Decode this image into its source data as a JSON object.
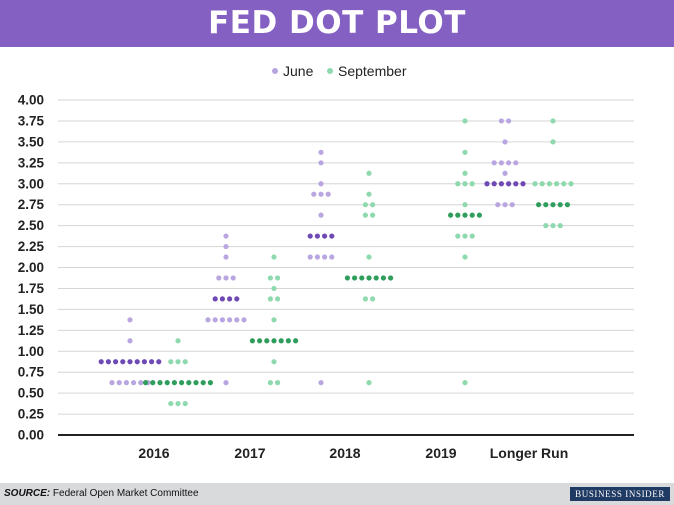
{
  "header": {
    "title": "FED DOT PLOT"
  },
  "footer": {
    "source_label": "SOURCE:",
    "source_text": "Federal Open Market Committee",
    "brand": "BUSINESS INSIDER"
  },
  "colors": {
    "banner": "#8460c2",
    "june": "#b9a6e0",
    "june_median": "#6f4ab5",
    "september": "#8ed9ad",
    "september_median": "#2f9e5c",
    "grid": "#d6d6d6",
    "axis": "#222222"
  },
  "chart_data": {
    "type": "scatter",
    "title": "FED DOT PLOT",
    "legend_position": "top",
    "grid": true,
    "categories": [
      "2016",
      "2017",
      "2018",
      "2019",
      "Longer Run"
    ],
    "yticks": [
      "0.00",
      "0.25",
      "0.50",
      "0.75",
      "1.00",
      "1.25",
      "1.50",
      "1.75",
      "2.00",
      "2.25",
      "2.50",
      "2.75",
      "3.00",
      "3.25",
      "3.50",
      "3.75",
      "4.00"
    ],
    "ylim": [
      0,
      4
    ],
    "series": [
      {
        "name": "June",
        "dots": [
          {
            "category": "2016",
            "points": [
              [
                1.375,
                1
              ],
              [
                1.125,
                1
              ],
              [
                0.875,
                9
              ],
              [
                0.625,
                6
              ]
            ],
            "median": 0.875
          },
          {
            "category": "2017",
            "points": [
              [
                2.375,
                1
              ],
              [
                2.25,
                1
              ],
              [
                2.125,
                1
              ],
              [
                1.875,
                3
              ],
              [
                1.625,
                4
              ],
              [
                1.375,
                6
              ],
              [
                0.625,
                1
              ]
            ],
            "median": 1.625
          },
          {
            "category": "2018",
            "points": [
              [
                3.375,
                1
              ],
              [
                3.25,
                1
              ],
              [
                3.0,
                1
              ],
              [
                2.875,
                3
              ],
              [
                2.625,
                1
              ],
              [
                2.375,
                4
              ],
              [
                2.125,
                4
              ],
              [
                0.625,
                1
              ]
            ],
            "median": 2.375
          },
          {
            "category": "Longer Run",
            "points": [
              [
                3.75,
                2
              ],
              [
                3.5,
                1
              ],
              [
                3.25,
                4
              ],
              [
                3.125,
                1
              ],
              [
                3.0,
                6
              ],
              [
                2.75,
                3
              ]
            ],
            "median": 3.0
          }
        ]
      },
      {
        "name": "September",
        "dots": [
          {
            "category": "2016",
            "points": [
              [
                1.125,
                1
              ],
              [
                0.875,
                3
              ],
              [
                0.625,
                10
              ],
              [
                0.375,
                3
              ]
            ],
            "median": 0.625
          },
          {
            "category": "2017",
            "points": [
              [
                2.125,
                1
              ],
              [
                1.875,
                2
              ],
              [
                1.75,
                1
              ],
              [
                1.625,
                2
              ],
              [
                1.375,
                1
              ],
              [
                1.125,
                7
              ],
              [
                0.875,
                1
              ],
              [
                0.625,
                2
              ]
            ],
            "median": 1.125
          },
          {
            "category": "2018",
            "points": [
              [
                3.125,
                1
              ],
              [
                2.875,
                1
              ],
              [
                2.75,
                2
              ],
              [
                2.625,
                2
              ],
              [
                2.125,
                1
              ],
              [
                1.875,
                7
              ],
              [
                1.625,
                2
              ],
              [
                0.625,
                1
              ]
            ],
            "median": 1.875
          },
          {
            "category": "2019",
            "points": [
              [
                3.75,
                1
              ],
              [
                3.375,
                1
              ],
              [
                3.125,
                1
              ],
              [
                3.0,
                3
              ],
              [
                2.75,
                1
              ],
              [
                2.625,
                5
              ],
              [
                2.375,
                3
              ],
              [
                2.125,
                1
              ],
              [
                0.625,
                1
              ]
            ],
            "median": 2.625
          },
          {
            "category": "Longer Run",
            "points": [
              [
                3.75,
                1
              ],
              [
                3.5,
                1
              ],
              [
                3.0,
                6
              ],
              [
                2.75,
                5
              ],
              [
                2.5,
                3
              ]
            ],
            "median": 2.75
          }
        ]
      }
    ]
  }
}
